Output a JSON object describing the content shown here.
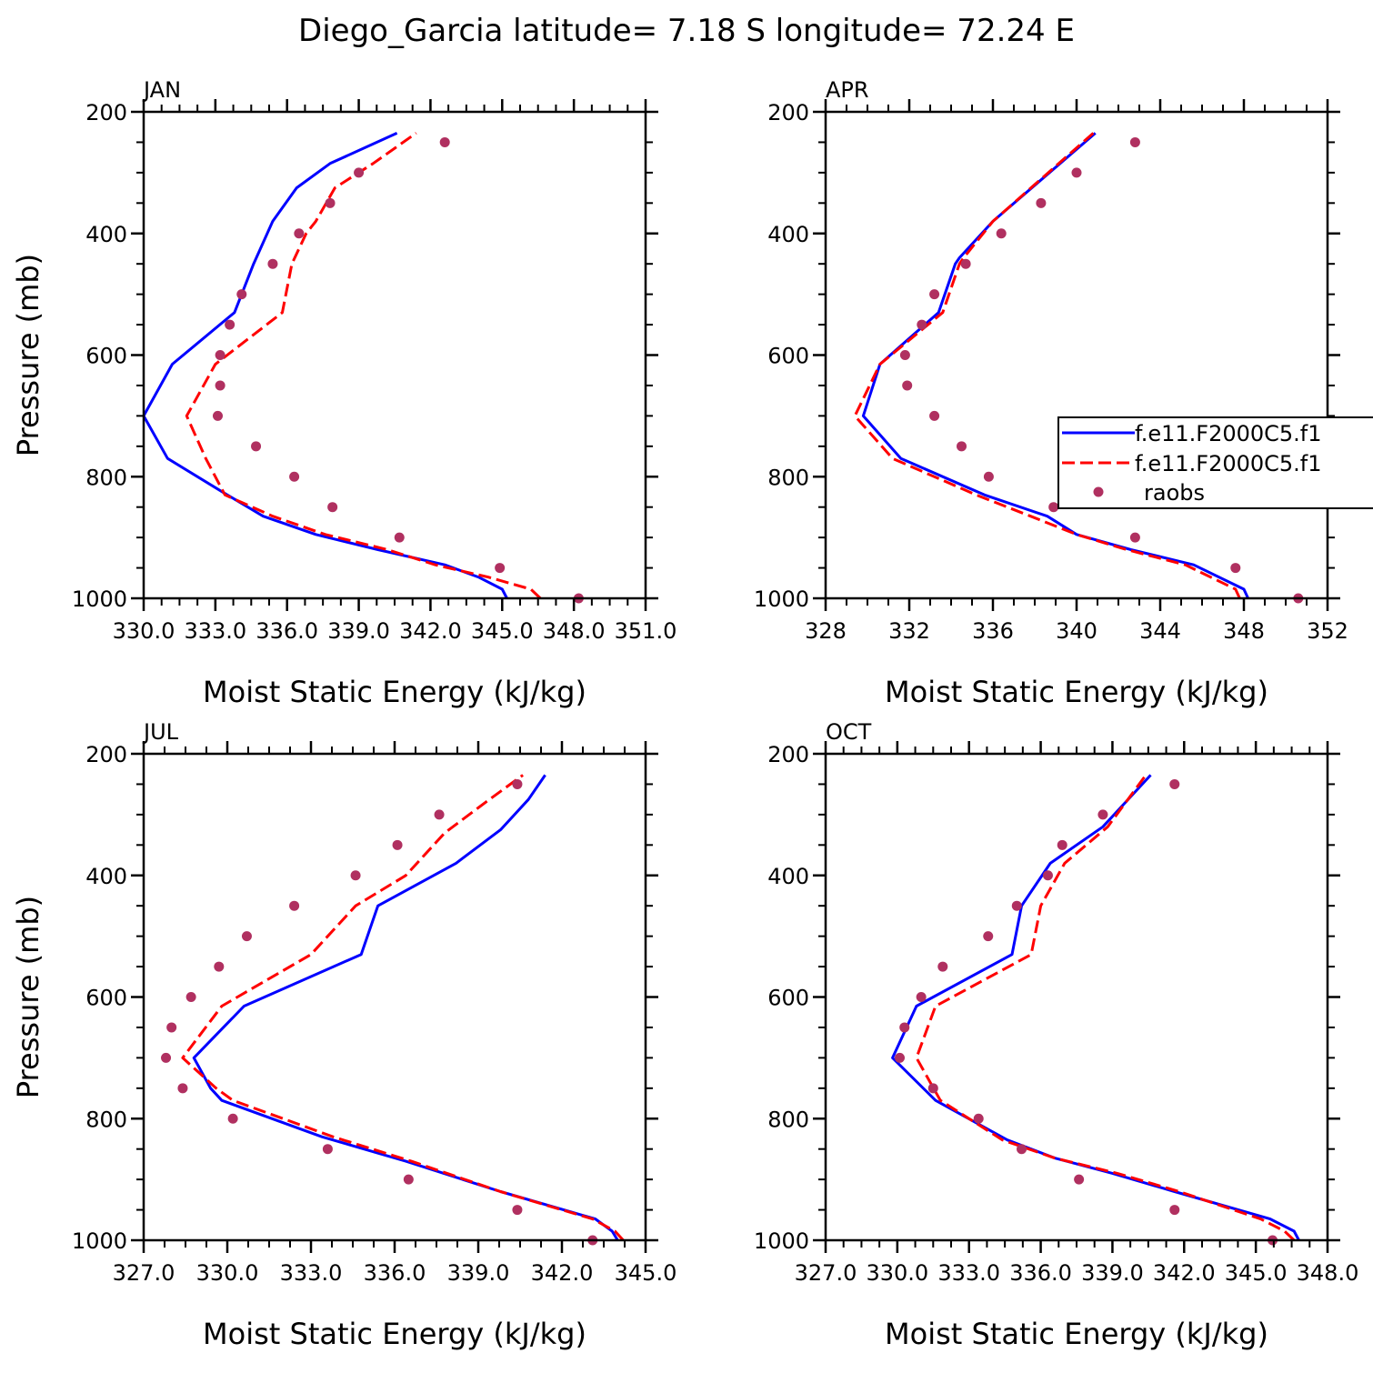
{
  "title": "Diego_Garcia  latitude= 7.18 S longitude= 72.24 E",
  "colors": {
    "model1": "#0000ff",
    "model2": "#ff0000",
    "raobs": "#b03060"
  },
  "legend": {
    "entries": [
      "f.e11.F2000C5.f1",
      "f.e11.F2000C5.f1",
      "raobs"
    ]
  },
  "chart_data": [
    {
      "type": "line",
      "panel": "JAN",
      "xlabel": "Moist Static Energy (kJ/kg)",
      "ylabel": "Pressure (mb)",
      "xlim": [
        330.0,
        351.0
      ],
      "ylim": [
        200,
        1000
      ],
      "xticks": [
        330,
        333,
        336,
        339,
        342,
        345,
        348,
        351
      ],
      "xtick_labels": [
        "330.0",
        "333.0",
        "336.0",
        "339.0",
        "342.0",
        "345.0",
        "348.0",
        "351.0"
      ],
      "yticks": [
        200,
        400,
        600,
        800,
        1000
      ],
      "series": [
        {
          "name": "f.e11.F2000C5.f1",
          "style": "solid",
          "x": [
            345.2,
            345.0,
            344.0,
            342.6,
            339.8,
            337.2,
            335.0,
            333.5,
            331.0,
            330.0,
            331.2,
            333.8,
            334.6,
            335.4,
            336.4,
            337.8,
            340.6
          ],
          "y": [
            1000,
            985,
            965,
            945,
            920,
            895,
            865,
            830,
            770,
            700,
            615,
            530,
            450,
            380,
            325,
            285,
            235
          ]
        },
        {
          "name": "f.e11.F2000C5.f1",
          "style": "dashed",
          "x": [
            346.6,
            346.2,
            344.4,
            342.2,
            340.2,
            337.6,
            335.4,
            333.4,
            332.6,
            331.8,
            333.0,
            335.8,
            336.2,
            336.8,
            337.2,
            338.0,
            339.6,
            341.4
          ],
          "y": [
            1000,
            985,
            965,
            945,
            920,
            895,
            865,
            830,
            770,
            700,
            615,
            530,
            450,
            400,
            380,
            325,
            285,
            235
          ]
        },
        {
          "name": "raobs",
          "style": "points",
          "x": [
            348.2,
            344.9,
            340.7,
            337.9,
            336.3,
            334.7,
            333.1,
            333.2,
            333.2,
            333.6,
            334.1,
            335.4,
            336.5,
            337.8,
            339.0,
            342.6
          ],
          "y": [
            1000,
            950,
            900,
            850,
            800,
            750,
            700,
            650,
            600,
            550,
            500,
            450,
            400,
            350,
            300,
            250
          ]
        }
      ]
    },
    {
      "type": "line",
      "panel": "APR",
      "xlabel": "Moist Static Energy (kJ/kg)",
      "ylabel": "",
      "xlim": [
        328,
        352
      ],
      "ylim": [
        200,
        1000
      ],
      "xticks": [
        328,
        332,
        336,
        340,
        344,
        348,
        352
      ],
      "xtick_labels": [
        "328",
        "332",
        "336",
        "340",
        "344",
        "348",
        "352"
      ],
      "yticks": [
        200,
        400,
        600,
        800,
        1000
      ],
      "series": [
        {
          "name": "f.e11.F2000C5.f1",
          "style": "solid",
          "x": [
            348.2,
            348.0,
            345.6,
            342.6,
            340.0,
            338.6,
            335.6,
            331.6,
            329.8,
            330.6,
            333.4,
            334.2,
            334.4,
            336.0,
            340.9
          ],
          "y": [
            1000,
            985,
            945,
            920,
            895,
            865,
            830,
            770,
            700,
            615,
            530,
            450,
            440,
            380,
            235
          ]
        },
        {
          "name": "f.e11.F2000C5.f1",
          "style": "dashed",
          "x": [
            347.8,
            347.6,
            345.2,
            342.4,
            340.0,
            337.8,
            335.2,
            331.2,
            329.4,
            330.6,
            333.6,
            334.4,
            334.6,
            336.0,
            340.8
          ],
          "y": [
            1000,
            985,
            945,
            920,
            895,
            865,
            830,
            770,
            700,
            615,
            530,
            450,
            440,
            380,
            235
          ]
        },
        {
          "name": "raobs",
          "style": "points",
          "x": [
            350.6,
            347.6,
            342.8,
            338.9,
            335.8,
            334.5,
            333.2,
            331.9,
            331.8,
            332.6,
            333.2,
            334.7,
            336.4,
            338.3,
            340.0,
            342.8
          ],
          "y": [
            1000,
            950,
            900,
            850,
            800,
            750,
            700,
            650,
            600,
            550,
            500,
            450,
            400,
            350,
            300,
            250
          ]
        }
      ]
    },
    {
      "type": "line",
      "panel": "JUL",
      "xlabel": "Moist Static Energy (kJ/kg)",
      "ylabel": "Pressure (mb)",
      "xlim": [
        327.0,
        345.0
      ],
      "ylim": [
        200,
        1000
      ],
      "xticks": [
        327,
        330,
        333,
        336,
        339,
        342,
        345
      ],
      "xtick_labels": [
        "327.0",
        "330.0",
        "333.0",
        "336.0",
        "339.0",
        "342.0",
        "345.0"
      ],
      "yticks": [
        200,
        400,
        600,
        800,
        1000
      ],
      "series": [
        {
          "name": "f.e11.F2000C5.f1",
          "style": "solid",
          "x": [
            344.0,
            343.8,
            343.2,
            339.8,
            336.4,
            333.4,
            329.8,
            329.4,
            328.8,
            330.6,
            334.8,
            335.4,
            338.2,
            339.8,
            340.8,
            341.4
          ],
          "y": [
            1000,
            985,
            965,
            920,
            870,
            830,
            770,
            750,
            700,
            615,
            530,
            450,
            380,
            325,
            275,
            235
          ]
        },
        {
          "name": "f.e11.F2000C5.f1",
          "style": "dashed",
          "x": [
            344.2,
            343.9,
            343.1,
            339.8,
            336.6,
            333.8,
            330.2,
            329.6,
            328.4,
            329.8,
            333.0,
            334.6,
            336.4,
            337.8,
            339.4,
            340.6
          ],
          "y": [
            1000,
            985,
            965,
            920,
            870,
            830,
            770,
            750,
            700,
            615,
            530,
            450,
            400,
            330,
            275,
            235
          ]
        },
        {
          "name": "raobs",
          "style": "points",
          "x": [
            343.1,
            340.4,
            336.5,
            333.6,
            330.2,
            328.4,
            327.8,
            328.0,
            328.7,
            329.7,
            330.7,
            332.4,
            334.6,
            336.1,
            337.6,
            340.4
          ],
          "y": [
            1000,
            950,
            900,
            850,
            800,
            750,
            700,
            650,
            600,
            550,
            500,
            450,
            400,
            350,
            300,
            250
          ]
        }
      ]
    },
    {
      "type": "line",
      "panel": "OCT",
      "xlabel": "Moist Static Energy (kJ/kg)",
      "ylabel": "",
      "xlim": [
        327.0,
        348.0
      ],
      "ylim": [
        200,
        1000
      ],
      "xticks": [
        327,
        330,
        333,
        336,
        339,
        342,
        345,
        348
      ],
      "xtick_labels": [
        "327.0",
        "330.0",
        "333.0",
        "336.0",
        "339.0",
        "342.0",
        "345.0",
        "348.0"
      ],
      "yticks": [
        200,
        400,
        600,
        800,
        1000
      ],
      "series": [
        {
          "name": "f.e11.F2000C5.f1",
          "style": "solid",
          "x": [
            346.8,
            346.6,
            345.6,
            341.6,
            339.0,
            336.6,
            334.6,
            331.6,
            329.8,
            330.8,
            334.8,
            335.2,
            336.4,
            338.6,
            340.6
          ],
          "y": [
            1000,
            985,
            965,
            920,
            890,
            865,
            835,
            770,
            700,
            615,
            530,
            450,
            380,
            320,
            235
          ]
        },
        {
          "name": "f.e11.F2000C5.f1",
          "style": "dashed",
          "x": [
            346.6,
            346.2,
            345.2,
            341.8,
            339.2,
            336.6,
            334.4,
            331.8,
            330.8,
            331.6,
            335.6,
            336.0,
            337.0,
            338.8,
            340.4
          ],
          "y": [
            1000,
            985,
            965,
            920,
            890,
            865,
            835,
            770,
            700,
            615,
            530,
            450,
            380,
            320,
            235
          ]
        },
        {
          "name": "raobs",
          "style": "points",
          "x": [
            345.7,
            341.6,
            337.6,
            335.2,
            333.4,
            331.5,
            330.1,
            330.3,
            331.0,
            331.9,
            333.8,
            335.0,
            336.3,
            336.9,
            338.6,
            341.6
          ],
          "y": [
            1000,
            950,
            900,
            850,
            800,
            750,
            700,
            650,
            600,
            550,
            500,
            450,
            400,
            350,
            300,
            250
          ]
        }
      ]
    }
  ]
}
